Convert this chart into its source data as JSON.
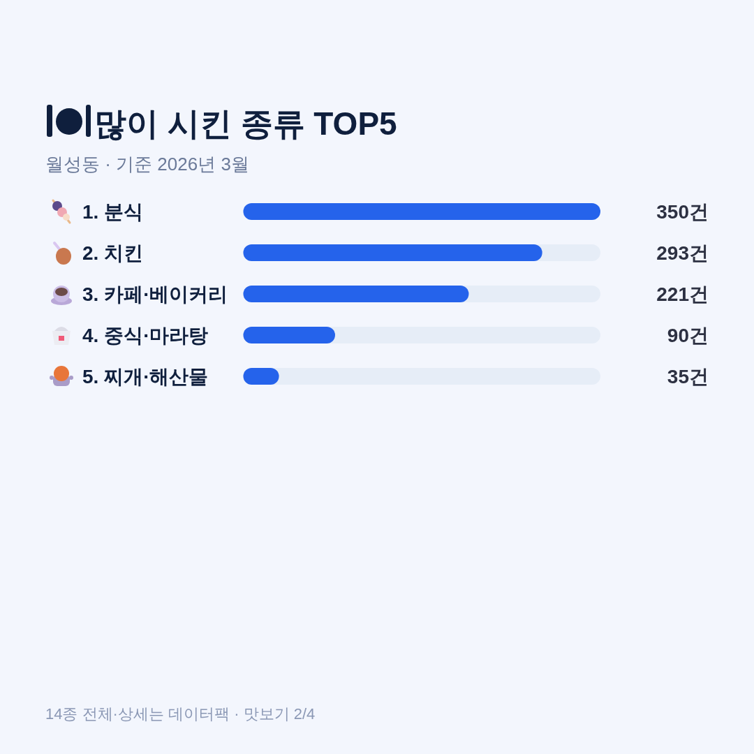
{
  "chart_data": {
    "type": "bar",
    "orientation": "horizontal",
    "title": "많이 시킨 종류 TOP5",
    "subtitle": "월성동 · 기준 2026년 3월",
    "categories": [
      "1. 분식",
      "2. 치킨",
      "3. 카페·베이커리",
      "4. 중식·마라탕",
      "5. 찌개·해산물"
    ],
    "values": [
      350,
      293,
      221,
      90,
      35
    ],
    "color": "#2563eb",
    "value_labels": [
      "350건",
      "293건",
      "221건",
      "90건",
      "35건"
    ],
    "annotations": [
      "14종 전체·상세는 데이터팩 · 맛보기 2/4"
    ]
  }
}
